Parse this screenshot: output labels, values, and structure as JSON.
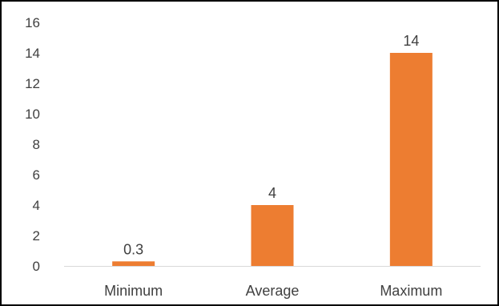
{
  "chart_data": {
    "type": "bar",
    "title": "",
    "xlabel": "",
    "ylabel": "",
    "categories": [
      "Minimum",
      "Average",
      "Maximum"
    ],
    "values": [
      0.3,
      4,
      14
    ],
    "data_labels": [
      "0.3",
      "4",
      "14"
    ],
    "ylim": [
      0,
      16
    ],
    "yticks": [
      0,
      2,
      4,
      6,
      8,
      10,
      12,
      14,
      16
    ],
    "ytick_labels": [
      "0",
      "2",
      "4",
      "6",
      "8",
      "10",
      "12",
      "14",
      "16"
    ],
    "grid": false,
    "legend": "none",
    "bar_color": "#ED7D31",
    "axis_color": "#D9D9D9",
    "text_color": "#404040"
  }
}
